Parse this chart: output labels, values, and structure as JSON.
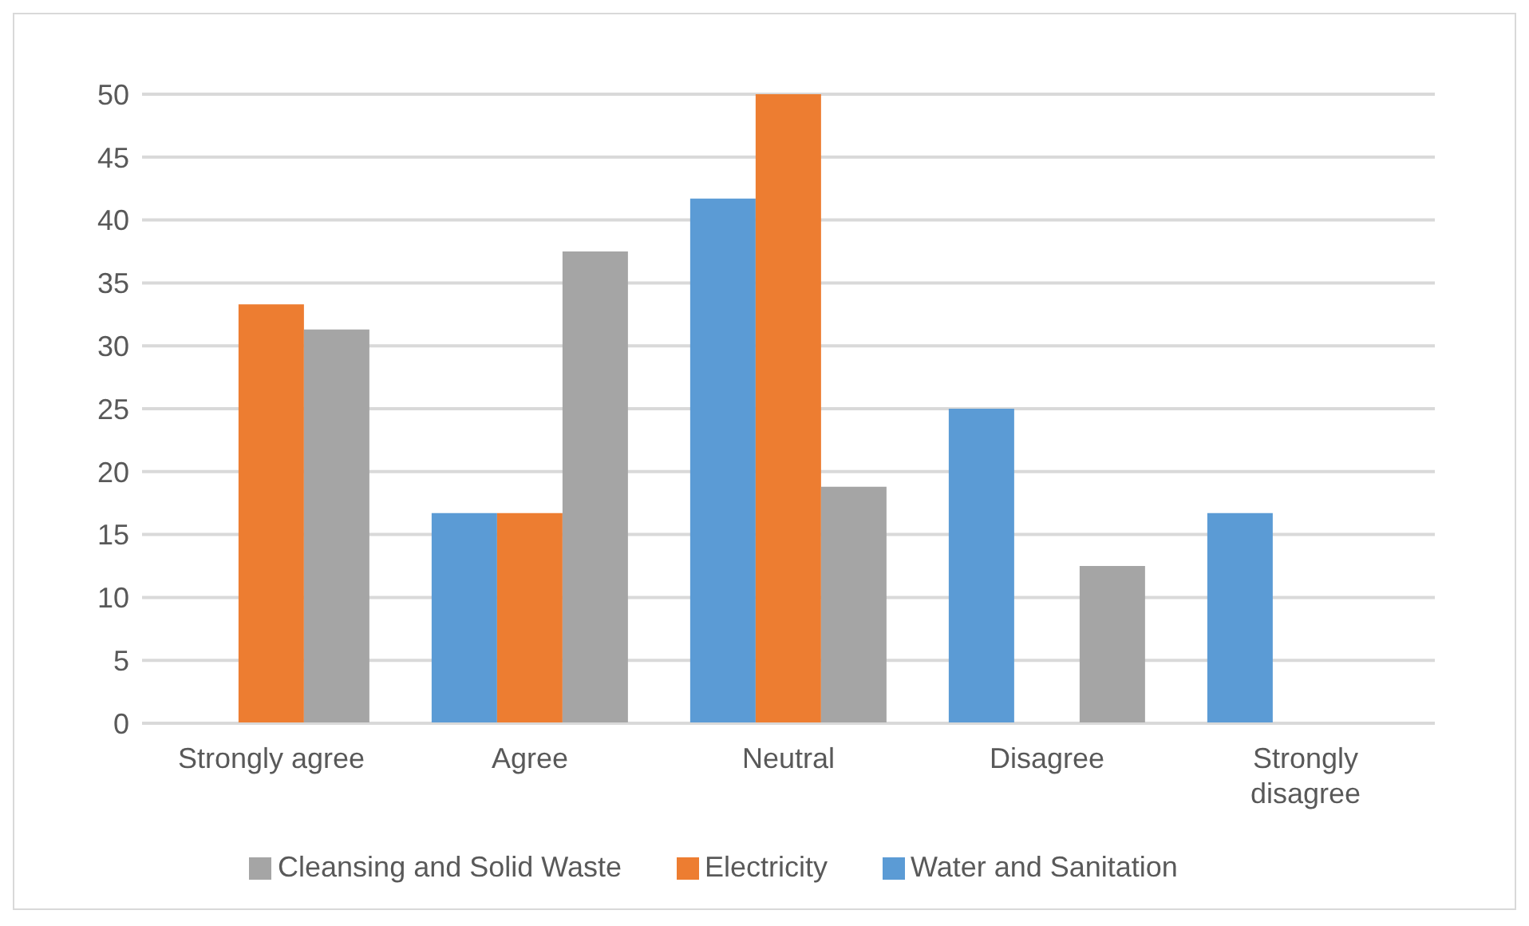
{
  "chart_data": {
    "type": "bar",
    "categories": [
      "Strongly agree",
      "Agree",
      "Neutral",
      "Disagree",
      "Strongly disagree"
    ],
    "series": [
      {
        "name": "Water and Sanitation",
        "color": "#5b9bd5",
        "values": [
          0,
          16.7,
          41.7,
          25,
          16.7
        ]
      },
      {
        "name": "Electricity",
        "color": "#ed7d31",
        "values": [
          33.3,
          16.7,
          50,
          0,
          0
        ]
      },
      {
        "name": "Cleansing and Solid Waste",
        "color": "#a5a5a5",
        "values": [
          31.3,
          37.5,
          18.8,
          12.5,
          0
        ]
      }
    ],
    "ylim": [
      0,
      50
    ],
    "yticks": [
      0,
      5,
      10,
      15,
      20,
      25,
      30,
      35,
      40,
      45,
      50
    ],
    "grid": "y",
    "legend": "bottom"
  }
}
